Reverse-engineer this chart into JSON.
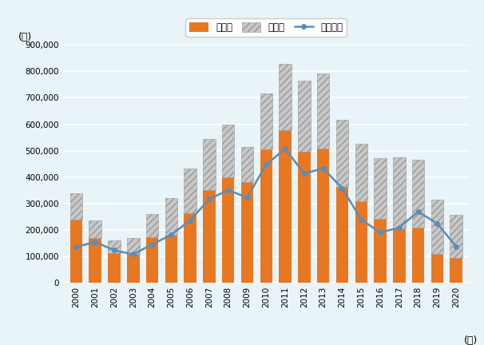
{
  "years": [
    2000,
    2001,
    2002,
    2003,
    2004,
    2005,
    2006,
    2007,
    2008,
    2009,
    2010,
    2011,
    2012,
    2013,
    2014,
    2015,
    2016,
    2017,
    2018,
    2019,
    2020
  ],
  "passenger": [
    238706,
    169591,
    111299,
    109784,
    171400,
    182761,
    263120,
    350735,
    399236,
    380067,
    506342,
    577233,
    497376,
    506539,
    363711,
    308756,
    241315,
    203694,
    208573,
    108364,
    93001
  ],
  "commercial": [
    100540,
    65986,
    48057,
    59837,
    89002,
    136994,
    168981,
    193912,
    197850,
    132857,
    210198,
    251538,
    267119,
    284468,
    253618,
    217901,
    231461,
    269714,
    258076,
    206423,
    164186
  ],
  "exports": [
    135760,
    155123,
    123062,
    108058,
    146236,
    181581,
    236789,
    316410,
    351092,
    322495,
    447953,
    506715,
    413472,
    433295,
    357847,
    240015,
    190008,
    209587,
    269360,
    224248,
    137891
  ],
  "bar_passenger_color": "#E87722",
  "bar_commercial_color": "#C8C8C8",
  "bar_commercial_hatch": "////",
  "line_color": "#5B8DB8",
  "background_color": "#E8F4F8",
  "grid_color": "#FFFFFF",
  "ylabel": "(台)",
  "xlabel": "(年)",
  "legend_passenger": "乗用車",
  "legend_commercial": "商用車",
  "legend_exports": "輸出台数",
  "ylim": [
    0,
    900000
  ],
  "yticks": [
    0,
    100000,
    200000,
    300000,
    400000,
    500000,
    600000,
    700000,
    800000,
    900000
  ],
  "ytick_labels": [
    "0",
    "100,000",
    "200,000",
    "300,000",
    "400,000",
    "500,000",
    "600,000",
    "700,000",
    "800,000",
    "900,000"
  ]
}
